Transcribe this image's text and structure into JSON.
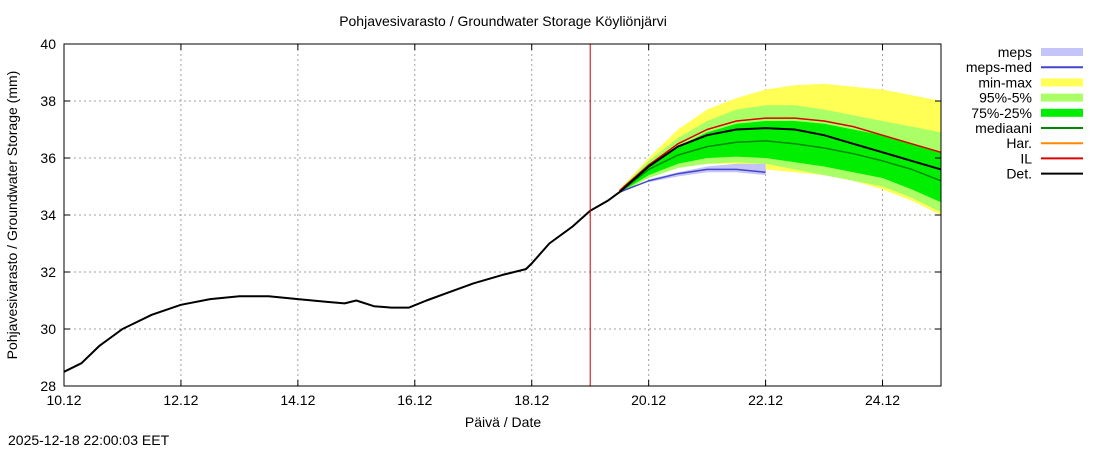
{
  "chart_data": {
    "type": "area",
    "title": "Pohjavesivarasto / Groundwater Storage   Köyliönjärvi",
    "xlabel": "Päivä / Date",
    "ylabel": "Pohjavesivarasto / Groundwater Storage (mm)",
    "x_unit": "days since 10.12",
    "xlim": [
      0,
      15
    ],
    "ylim": [
      28,
      40
    ],
    "x_ticks": [
      {
        "x": 0,
        "label": "10.12"
      },
      {
        "x": 2,
        "label": "12.12"
      },
      {
        "x": 4,
        "label": "14.12"
      },
      {
        "x": 6,
        "label": "16.12"
      },
      {
        "x": 8,
        "label": "18.12"
      },
      {
        "x": 10,
        "label": "20.12"
      },
      {
        "x": 12,
        "label": "22.12"
      },
      {
        "x": 14,
        "label": "24.12"
      }
    ],
    "y_ticks": [
      {
        "y": 28,
        "label": "28"
      },
      {
        "y": 30,
        "label": "30"
      },
      {
        "y": 32,
        "label": "32"
      },
      {
        "y": 34,
        "label": "34"
      },
      {
        "y": 36,
        "label": "36"
      },
      {
        "y": 38,
        "label": "38"
      },
      {
        "y": 40,
        "label": "40"
      }
    ],
    "grid": true,
    "legend_position": "right",
    "forecast_start_x": 9.0,
    "bands": [
      {
        "name": "min-max",
        "color": "#ffff55",
        "x": [
          9.5,
          10,
          10.5,
          11,
          11.5,
          12,
          12.5,
          13,
          13.5,
          14,
          14.5,
          15
        ],
        "lower": [
          34.75,
          35.3,
          35.7,
          35.8,
          35.8,
          35.6,
          35.5,
          35.4,
          35.2,
          34.9,
          34.5,
          34.0
        ],
        "upper": [
          34.9,
          36.0,
          37.0,
          37.7,
          38.1,
          38.4,
          38.55,
          38.6,
          38.5,
          38.4,
          38.2,
          38.0
        ]
      },
      {
        "name": "95%-5%",
        "color": "#aaff66",
        "x": [
          9.5,
          10,
          10.5,
          11,
          11.5,
          12,
          12.5,
          13,
          13.5,
          14,
          14.5,
          15
        ],
        "lower": [
          34.75,
          35.3,
          35.65,
          35.8,
          35.85,
          35.8,
          35.6,
          35.4,
          35.2,
          35.0,
          34.6,
          34.1
        ],
        "upper": [
          34.9,
          35.9,
          36.7,
          37.3,
          37.7,
          37.85,
          37.85,
          37.7,
          37.5,
          37.3,
          37.1,
          36.9
        ]
      },
      {
        "name": "75%-25%",
        "color": "#00ee00",
        "x": [
          9.5,
          10,
          10.5,
          11,
          11.5,
          12,
          12.5,
          13,
          13.5,
          14,
          14.5,
          15
        ],
        "lower": [
          34.78,
          35.4,
          35.8,
          36.0,
          36.05,
          36.0,
          35.85,
          35.7,
          35.5,
          35.3,
          34.9,
          34.45
        ],
        "upper": [
          34.85,
          35.8,
          36.4,
          36.9,
          37.2,
          37.3,
          37.3,
          37.2,
          37.0,
          36.8,
          36.5,
          36.2
        ]
      },
      {
        "name": "meps",
        "color": "#c4c4f8",
        "x": [
          10,
          10.5,
          11,
          11.5,
          12
        ],
        "lower": [
          35.15,
          35.35,
          35.5,
          35.5,
          35.4
        ],
        "upper": [
          35.25,
          35.5,
          35.7,
          35.8,
          35.8
        ]
      }
    ],
    "series": [
      {
        "name": "mediaani",
        "color": "#008800",
        "x": [
          9.5,
          10,
          10.5,
          11,
          11.5,
          12,
          12.5,
          13,
          13.5,
          14,
          14.5,
          15
        ],
        "y": [
          34.8,
          35.6,
          36.1,
          36.4,
          36.55,
          36.6,
          36.5,
          36.35,
          36.15,
          35.9,
          35.6,
          35.2
        ]
      },
      {
        "name": "meps-med",
        "color": "#4444cc",
        "x": [
          9.5,
          10,
          10.5,
          11,
          11.5,
          12
        ],
        "y": [
          34.8,
          35.2,
          35.45,
          35.6,
          35.6,
          35.5
        ]
      },
      {
        "name": "IL",
        "color": "#dd0000",
        "x": [
          9.5,
          10,
          10.5,
          11,
          11.5,
          12,
          12.5,
          13,
          13.5,
          14,
          14.5,
          15
        ],
        "y": [
          34.85,
          35.75,
          36.5,
          37.0,
          37.3,
          37.4,
          37.4,
          37.3,
          37.1,
          36.8,
          36.5,
          36.2
        ]
      },
      {
        "name": "Det.",
        "color": "#000000",
        "x": [
          0,
          0.3,
          0.6,
          1,
          1.5,
          2,
          2.5,
          3,
          3.5,
          4,
          4.5,
          4.8,
          5,
          5.3,
          5.6,
          5.9,
          6.2,
          6.6,
          7,
          7.5,
          7.9,
          8.0,
          8.3,
          8.7,
          9.0,
          9.3,
          9.5,
          10,
          10.5,
          11,
          11.5,
          12,
          12.5,
          13,
          13.5,
          14,
          14.5,
          15
        ],
        "y": [
          28.5,
          28.8,
          29.4,
          30.0,
          30.5,
          30.85,
          31.05,
          31.15,
          31.15,
          31.05,
          30.95,
          30.9,
          31.0,
          30.8,
          30.75,
          30.75,
          31.0,
          31.3,
          31.6,
          31.9,
          32.1,
          32.3,
          33.0,
          33.6,
          34.15,
          34.5,
          34.8,
          35.7,
          36.4,
          36.8,
          37.0,
          37.05,
          37.0,
          36.8,
          36.5,
          36.2,
          35.9,
          35.6
        ]
      }
    ],
    "legend": [
      {
        "label": "meps",
        "type": "band",
        "color": "#c4c4f8"
      },
      {
        "label": "meps-med",
        "type": "line",
        "color": "#4444cc"
      },
      {
        "label": "min-max",
        "type": "band",
        "color": "#ffff55"
      },
      {
        "label": "95%-5%",
        "type": "band",
        "color": "#aaff66"
      },
      {
        "label": "75%-25%",
        "type": "band",
        "color": "#00ee00"
      },
      {
        "label": "mediaani",
        "type": "line",
        "color": "#008800"
      },
      {
        "label": "Har.",
        "type": "line",
        "color": "#ff8800"
      },
      {
        "label": "IL",
        "type": "line",
        "color": "#dd0000"
      },
      {
        "label": "Det.",
        "type": "line",
        "color": "#000000"
      }
    ]
  },
  "footer": {
    "timestamp": "2025-12-18 22:00:03 EET"
  }
}
